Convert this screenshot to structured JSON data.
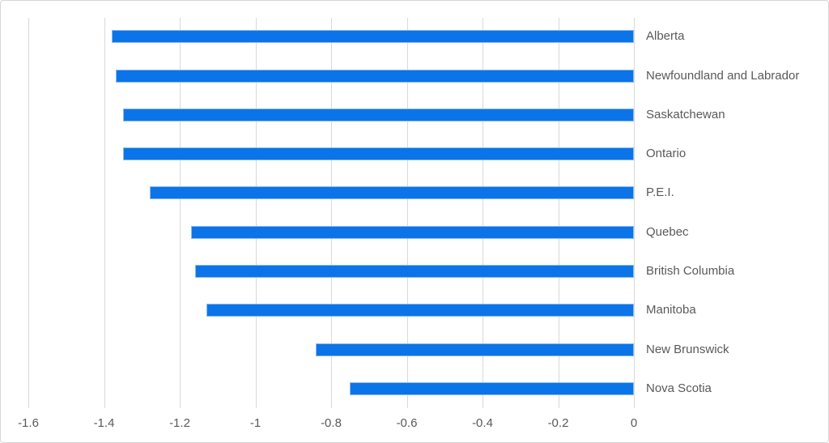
{
  "chart_data": {
    "type": "bar",
    "orientation": "horizontal",
    "title": "",
    "xlabel": "",
    "ylabel": "",
    "categories": [
      "Alberta",
      "Newfoundland and Labrador",
      "Saskatchewan",
      "Ontario",
      "P.E.I.",
      "Quebec",
      "British Columbia",
      "Manitoba",
      "New Brunswick",
      "Nova Scotia"
    ],
    "values": [
      -1.38,
      -1.37,
      -1.35,
      -1.35,
      -1.28,
      -1.17,
      -1.16,
      -1.13,
      -0.84,
      -0.75
    ],
    "xlim": [
      -1.6,
      0
    ],
    "x_ticks": [
      -1.6,
      -1.4,
      -1.2,
      -1.0,
      -0.8,
      -0.6,
      -0.4,
      -0.2,
      0
    ],
    "x_tick_labels": [
      "-1.6",
      "-1.4",
      "-1.2",
      "-1",
      "-0.8",
      "-0.6",
      "-0.4",
      "-0.2",
      "0"
    ],
    "grid": "vertical",
    "legend": "none",
    "category_label_side": "right",
    "colors": {
      "bar": "#0b74e8",
      "gridline": "#d9d9d9",
      "tick_label": "#595959",
      "category_label": "#595959",
      "background": "#ffffff",
      "border": "#d6d6d6"
    }
  }
}
